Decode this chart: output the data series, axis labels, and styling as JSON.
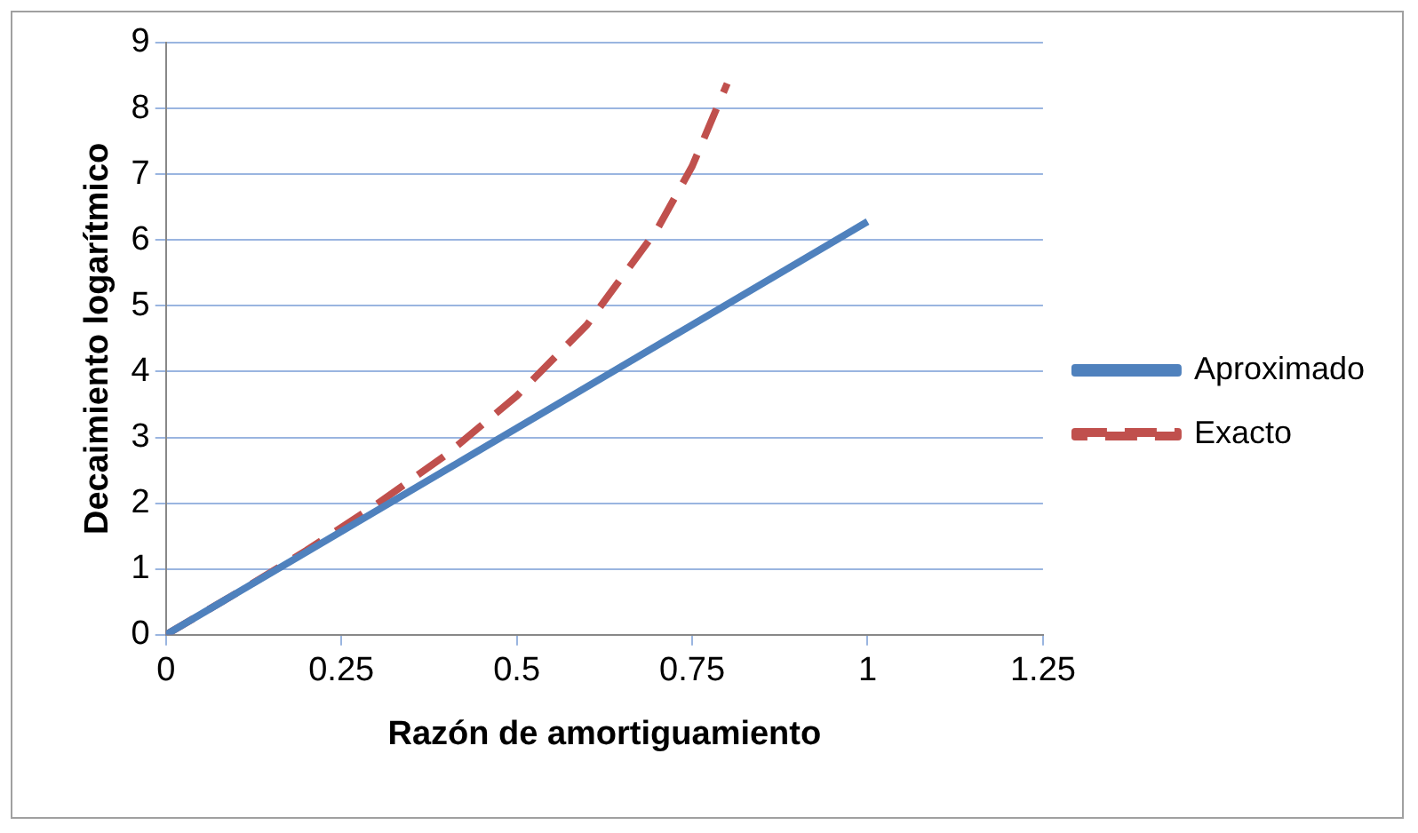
{
  "chart_data": {
    "type": "line",
    "xlabel": "Razón de amortiguamiento",
    "ylabel": "Decaimiento logarítmico",
    "xlim": [
      0,
      1.25
    ],
    "xticks": [
      0,
      0.25,
      0.5,
      0.75,
      1,
      1.25
    ],
    "ylim": [
      0,
      9
    ],
    "yticks": [
      0,
      1,
      2,
      3,
      4,
      5,
      6,
      7,
      8,
      9
    ],
    "grid": "y",
    "legend": "right",
    "marker": "none",
    "series": [
      {
        "name": "Aproximado",
        "color": "#4f81bd",
        "line_style": "solid",
        "x": [
          0,
          1
        ],
        "values": [
          0,
          6.28
        ]
      },
      {
        "name": "Exacto",
        "color": "#c0504d",
        "line_style": "dashed",
        "x": [
          0,
          0.1,
          0.2,
          0.3,
          0.4,
          0.5,
          0.6,
          0.7,
          0.75,
          0.8
        ],
        "values": [
          0,
          0.63,
          1.28,
          1.98,
          2.74,
          3.63,
          4.71,
          6.16,
          7.12,
          8.38
        ]
      }
    ]
  }
}
